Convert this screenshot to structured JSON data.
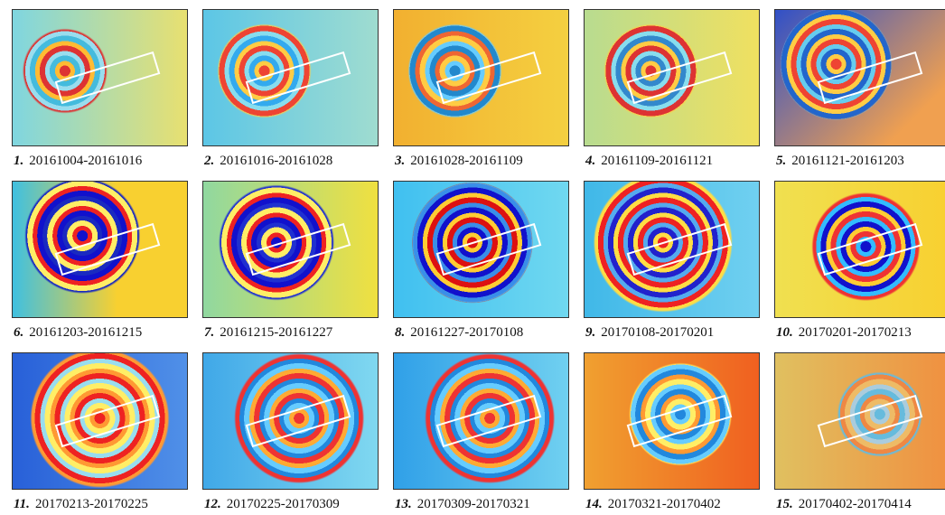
{
  "panels": [
    {
      "number": "1.",
      "dates": "20161004-20161016"
    },
    {
      "number": "2.",
      "dates": "20161016-20161028"
    },
    {
      "number": "3.",
      "dates": "20161028-20161109"
    },
    {
      "number": "4.",
      "dates": "20161109-20161121"
    },
    {
      "number": "5.",
      "dates": "20161121-20161203"
    },
    {
      "number": "6.",
      "dates": "20161203-20161215"
    },
    {
      "number": "7.",
      "dates": "20161215-20161227"
    },
    {
      "number": "8.",
      "dates": "20161227-20170108"
    },
    {
      "number": "9.",
      "dates": "20170108-20170201"
    },
    {
      "number": "10.",
      "dates": "20170201-20170213"
    },
    {
      "number": "11.",
      "dates": "20170213-20170225"
    },
    {
      "number": "12.",
      "dates": "20170225-20170309"
    },
    {
      "number": "13.",
      "dates": "20170309-20170321"
    },
    {
      "number": "14.",
      "dates": "20170321-20170402"
    },
    {
      "number": "15.",
      "dates": "20170402-20170414"
    }
  ]
}
